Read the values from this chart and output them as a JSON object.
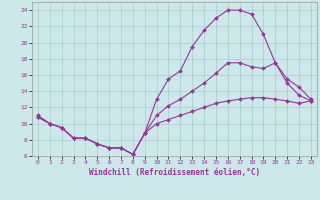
{
  "xlabel": "Windchill (Refroidissement éolien,°C)",
  "background_color": "#cce8e8",
  "grid_color": "#aacccc",
  "line_color": "#993399",
  "xlim": [
    -0.5,
    23.5
  ],
  "ylim": [
    6,
    25
  ],
  "xticks": [
    0,
    1,
    2,
    3,
    4,
    5,
    6,
    7,
    8,
    9,
    10,
    11,
    12,
    13,
    14,
    15,
    16,
    17,
    18,
    19,
    20,
    21,
    22,
    23
  ],
  "yticks": [
    6,
    8,
    10,
    12,
    14,
    16,
    18,
    20,
    22,
    24
  ],
  "curve1_x": [
    0,
    1,
    2,
    3,
    4,
    5,
    6,
    7,
    8,
    9,
    10,
    11,
    12,
    13,
    14,
    15,
    16,
    17,
    18,
    19,
    20,
    21,
    22,
    23
  ],
  "curve1_y": [
    11,
    10,
    9.5,
    8.2,
    8.2,
    7.5,
    7.0,
    7.0,
    6.2,
    8.8,
    13.0,
    15.5,
    16.5,
    19.5,
    21.5,
    23.0,
    24.0,
    24.0,
    23.5,
    21.0,
    17.5,
    15.5,
    14.5,
    13.0
  ],
  "curve2_x": [
    0,
    1,
    2,
    3,
    4,
    5,
    6,
    7,
    8,
    9,
    10,
    11,
    12,
    13,
    14,
    15,
    16,
    17,
    18,
    19,
    20,
    21,
    22,
    23
  ],
  "curve2_y": [
    10.8,
    10.0,
    9.5,
    8.2,
    8.2,
    7.5,
    7.0,
    7.0,
    6.2,
    8.8,
    11.0,
    12.2,
    13.0,
    14.0,
    15.0,
    16.2,
    17.5,
    17.5,
    17.0,
    16.8,
    17.5,
    15.0,
    13.5,
    12.8
  ],
  "curve3_x": [
    0,
    1,
    2,
    3,
    4,
    5,
    6,
    7,
    8,
    9,
    10,
    11,
    12,
    13,
    14,
    15,
    16,
    17,
    18,
    19,
    20,
    21,
    22,
    23
  ],
  "curve3_y": [
    10.8,
    10.0,
    9.5,
    8.2,
    8.2,
    7.5,
    7.0,
    7.0,
    6.2,
    8.8,
    10.0,
    10.5,
    11.0,
    11.5,
    12.0,
    12.5,
    12.8,
    13.0,
    13.2,
    13.2,
    13.0,
    12.8,
    12.5,
    12.8
  ]
}
